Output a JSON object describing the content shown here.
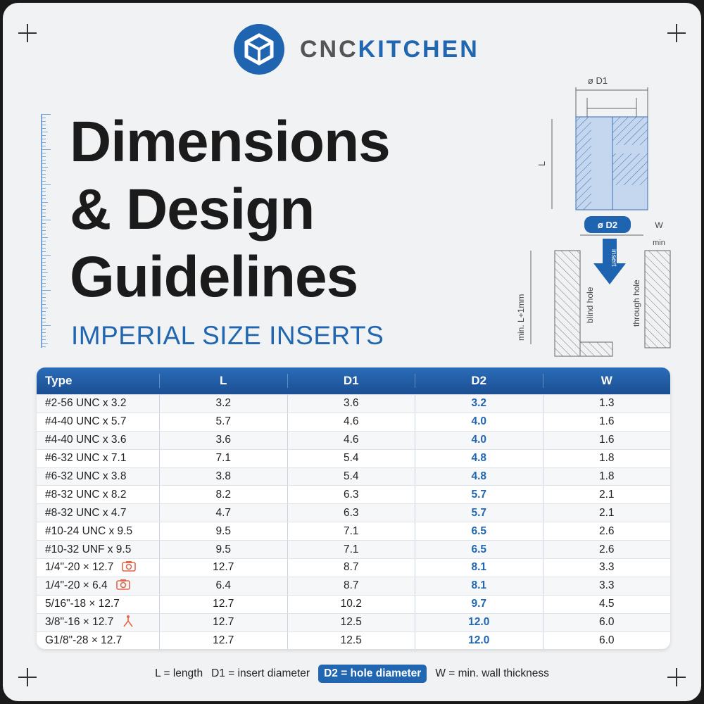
{
  "logo": {
    "text_a": "CNC",
    "text_b": "KITCHEN"
  },
  "title": {
    "line1": "Dimensions",
    "line2": "& Design",
    "line3": "Guidelines"
  },
  "subtitle": "IMPERIAL SIZE INSERTS",
  "diagram": {
    "d1": "ø D1",
    "l": "L",
    "d2": "ø D2",
    "w": "W",
    "min": "min",
    "depth": "min. L+1mm",
    "blind": "blind hole",
    "through": "through hole",
    "insert": "insert"
  },
  "table": {
    "headers": [
      "Type",
      "L",
      "D1",
      "D2",
      "W"
    ],
    "rows": [
      {
        "type": "#2-56 UNC x 3.2",
        "L": "3.2",
        "D1": "3.6",
        "D2": "3.2",
        "W": "1.3",
        "icon": ""
      },
      {
        "type": "#4-40 UNC x 5.7",
        "L": "5.7",
        "D1": "4.6",
        "D2": "4.0",
        "W": "1.6",
        "icon": ""
      },
      {
        "type": "#4-40 UNC x 3.6",
        "L": "3.6",
        "D1": "4.6",
        "D2": "4.0",
        "W": "1.6",
        "icon": ""
      },
      {
        "type": "#6-32 UNC x 7.1",
        "L": "7.1",
        "D1": "5.4",
        "D2": "4.8",
        "W": "1.8",
        "icon": ""
      },
      {
        "type": "#6-32 UNC x 3.8",
        "L": "3.8",
        "D1": "5.4",
        "D2": "4.8",
        "W": "1.8",
        "icon": ""
      },
      {
        "type": "#8-32 UNC x 8.2",
        "L": "8.2",
        "D1": "6.3",
        "D2": "5.7",
        "W": "2.1",
        "icon": ""
      },
      {
        "type": "#8-32 UNC x 4.7",
        "L": "4.7",
        "D1": "6.3",
        "D2": "5.7",
        "W": "2.1",
        "icon": ""
      },
      {
        "type": "#10-24 UNC x 9.5",
        "L": "9.5",
        "D1": "7.1",
        "D2": "6.5",
        "W": "2.6",
        "icon": ""
      },
      {
        "type": "#10-32 UNF x 9.5",
        "L": "9.5",
        "D1": "7.1",
        "D2": "6.5",
        "W": "2.6",
        "icon": ""
      },
      {
        "type": "1/4\"-20 × 12.7",
        "L": "12.7",
        "D1": "8.7",
        "D2": "8.1",
        "W": "3.3",
        "icon": "camera-icon"
      },
      {
        "type": "1/4\"-20 × 6.4",
        "L": "6.4",
        "D1": "8.7",
        "D2": "8.1",
        "W": "3.3",
        "icon": "camera-icon"
      },
      {
        "type": "5/16\"-18 × 12.7",
        "L": "12.7",
        "D1": "10.2",
        "D2": "9.7",
        "W": "4.5",
        "icon": ""
      },
      {
        "type": "3/8\"-16 × 12.7",
        "L": "12.7",
        "D1": "12.5",
        "D2": "12.0",
        "W": "6.0",
        "icon": "tripod-icon"
      },
      {
        "type": "G1/8\"-28 × 12.7",
        "L": "12.7",
        "D1": "12.5",
        "D2": "12.0",
        "W": "6.0",
        "icon": ""
      }
    ]
  },
  "legend": {
    "l": "L = length",
    "d1": "D1 = insert diameter",
    "d2": "D2 = hole diameter",
    "w": "W = min. wall thickness"
  },
  "colors": {
    "accent": "#2166b0",
    "icon": "#e2664a",
    "background": "#f1f2f4"
  }
}
